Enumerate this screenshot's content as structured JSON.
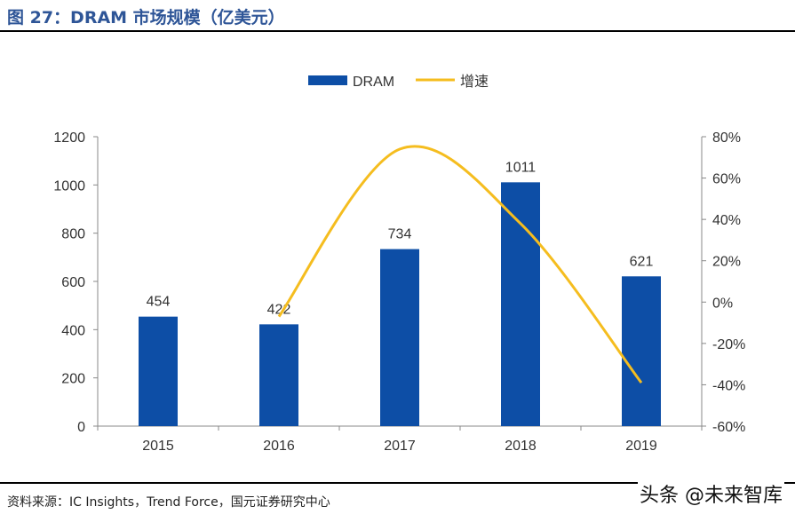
{
  "title": "图 27：DRAM 市场规模（亿美元）",
  "source": "资料来源：IC Insights，Trend Force，国元证券研究中心",
  "watermark": "头条 @未来智库",
  "chart_data": {
    "type": "bar",
    "categories": [
      "2015",
      "2016",
      "2017",
      "2018",
      "2019"
    ],
    "series": [
      {
        "name": "DRAM",
        "type": "bar",
        "axis": "left",
        "color": "#0d4ea6",
        "values": [
          454,
          422,
          734,
          1011,
          621
        ],
        "labels": [
          "454",
          "422",
          "734",
          "1011",
          "621"
        ]
      },
      {
        "name": "增速",
        "type": "line",
        "axis": "right",
        "color": "#f5bd1f",
        "values": [
          null,
          -7,
          74,
          38,
          -39
        ],
        "smooth": true
      }
    ],
    "ylim": [
      0,
      1200
    ],
    "yticks": [
      "0",
      "200",
      "400",
      "600",
      "800",
      "1000",
      "1200"
    ],
    "y2lim": [
      -60,
      80
    ],
    "y2ticks": [
      "-60%",
      "-40%",
      "-20%",
      "0%",
      "20%",
      "40%",
      "60%",
      "80%"
    ],
    "legend": "top-center",
    "grid": false
  }
}
